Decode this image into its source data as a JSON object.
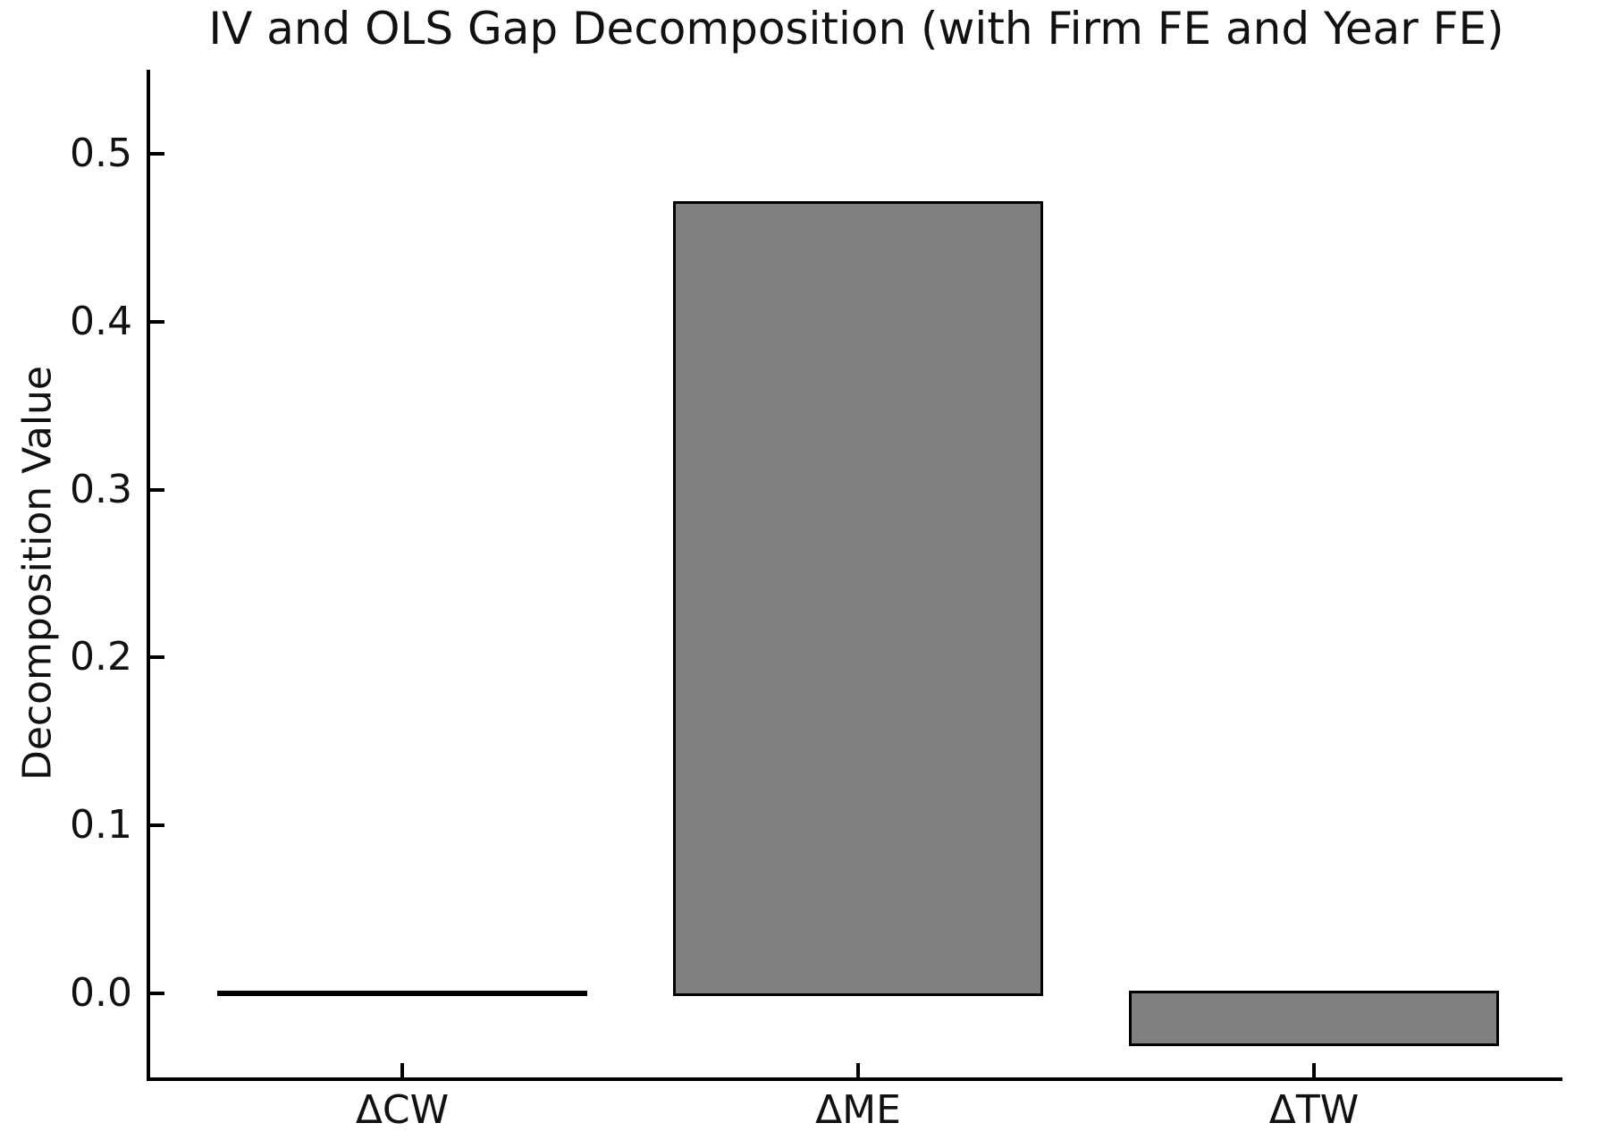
{
  "chart_data": {
    "type": "bar",
    "title": "IV and OLS Gap Decomposition (with Firm FE and Year FE)",
    "xlabel": "",
    "ylabel": "Decomposition Value",
    "categories": [
      "ΔCW",
      "ΔME",
      "ΔTW"
    ],
    "values": [
      0.0,
      0.47,
      -0.03
    ],
    "yticks": [
      0.0,
      0.1,
      0.2,
      0.3,
      0.4,
      0.5
    ],
    "ytick_labels": [
      "0.0",
      "0.1",
      "0.2",
      "0.3",
      "0.4",
      "0.5"
    ],
    "ylim": [
      -0.05,
      0.55
    ],
    "grid": false,
    "legend": false,
    "bar_color": "#808080",
    "bar_edge_color": "#000000",
    "spines": [
      "left",
      "bottom"
    ],
    "tick_direction": "in"
  }
}
